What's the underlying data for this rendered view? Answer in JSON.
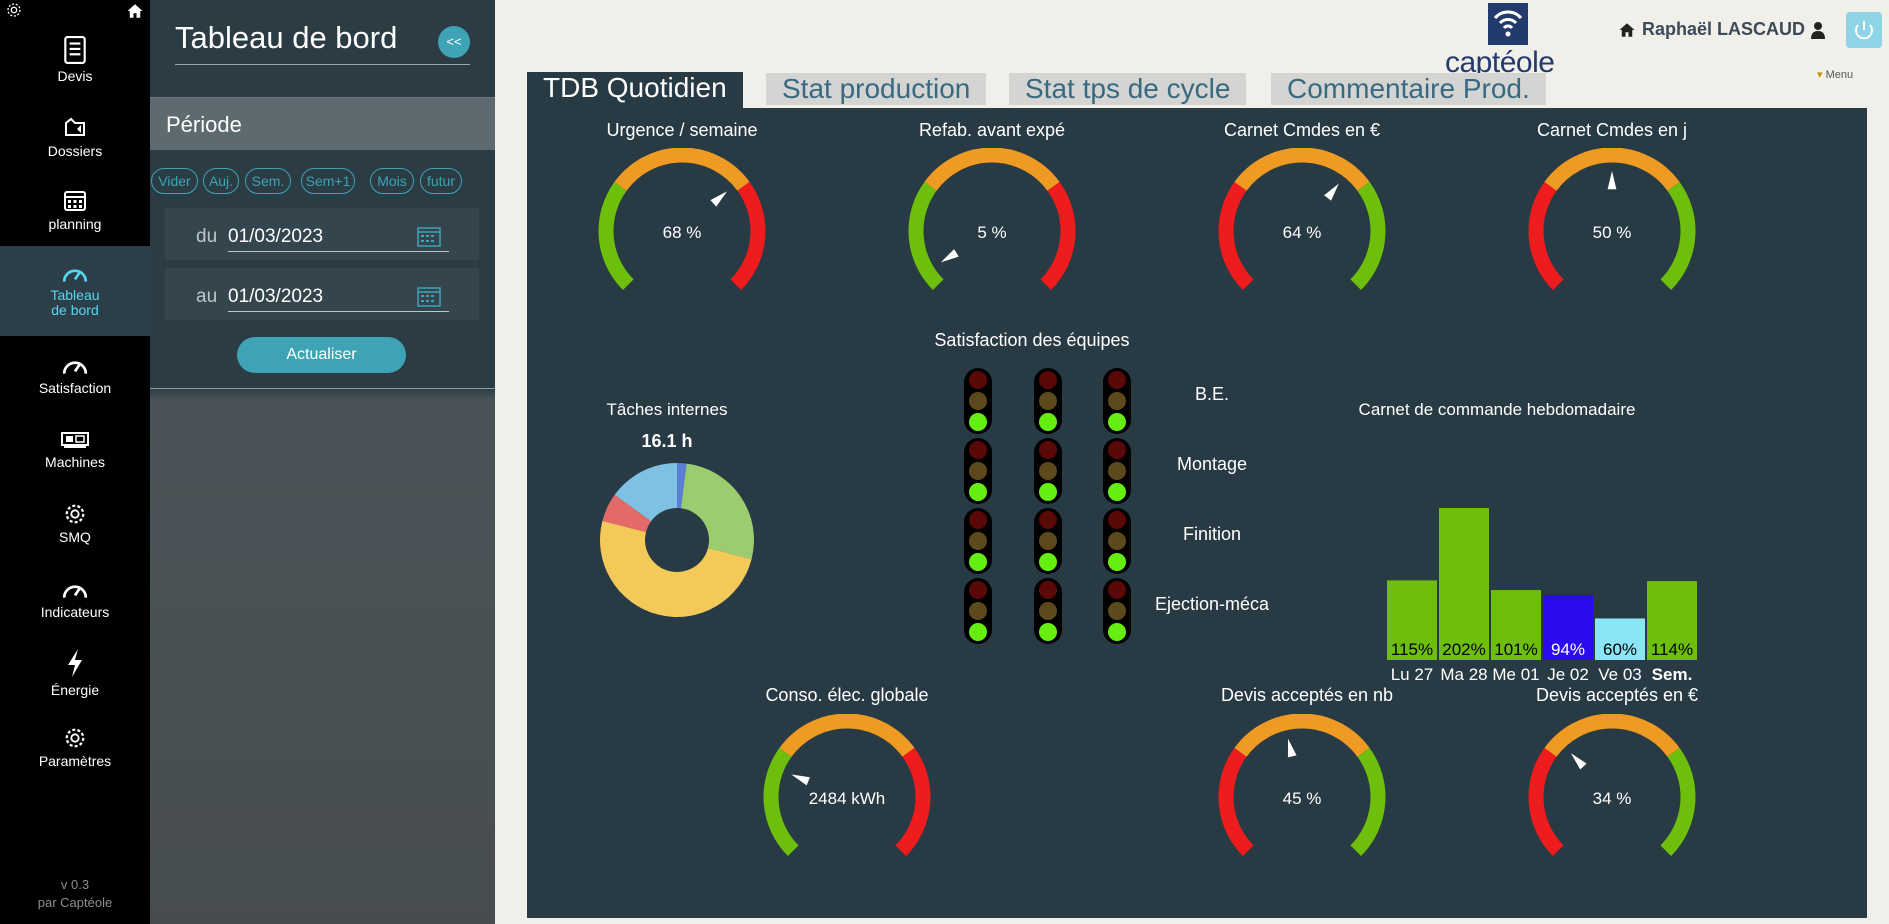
{
  "nav": {
    "items": [
      {
        "label": "Devis",
        "icon": "document-icon"
      },
      {
        "label": "Dossiers",
        "icon": "folder-icon"
      },
      {
        "label": "planning",
        "icon": "calendar-icon"
      },
      {
        "label": "Tableau de bord",
        "icon": "gauge-icon",
        "active": true
      },
      {
        "label": "Satisfaction",
        "icon": "gauge-icon"
      },
      {
        "label": "Machines",
        "icon": "machine-icon"
      },
      {
        "label": "SMQ",
        "icon": "gear-icon"
      },
      {
        "label": "Indicateurs",
        "icon": "gauge-icon"
      },
      {
        "label": "Énergie",
        "icon": "lightning-icon"
      },
      {
        "label": "Paramètres",
        "icon": "gear-icon"
      }
    ],
    "version": "v 0.3",
    "by": "par Captéole"
  },
  "panel": {
    "title": "Tableau de bord",
    "collapse": "<<",
    "periode": "Période",
    "period_buttons": [
      "Vider",
      "Auj.",
      "Sem.",
      "Sem+1",
      "Mois",
      "futur"
    ],
    "from_label": "du",
    "from_value": "01/03/2023",
    "to_label": "au",
    "to_value": "01/03/2023",
    "refresh": "Actualiser"
  },
  "header": {
    "logo_text": "captéole",
    "user": "Raphaël LASCAUD",
    "menu": "Menu"
  },
  "tabs": [
    "TDB Quotidien",
    "Stat production",
    "Stat tps de cycle",
    "Commentaire Prod."
  ],
  "gauges": {
    "urgence": {
      "title": "Urgence / semaine",
      "value_text": "68 %",
      "value": 68,
      "scheme": "green-orange-red"
    },
    "refab": {
      "title": "Refab. avant expé",
      "value_text": "5 %",
      "value": 5,
      "scheme": "green-orange-red"
    },
    "carnet_eur": {
      "title": "Carnet Cmdes en €",
      "value_text": "64 %",
      "value": 64,
      "scheme": "red-orange-green"
    },
    "carnet_j": {
      "title": "Carnet Cmdes en j",
      "value_text": "50 %",
      "value": 50,
      "scheme": "red-orange-green"
    },
    "conso": {
      "title": "Conso. élec. globale",
      "value_text": "2484  kWh",
      "value": 2484,
      "scheme": "green-orange-red"
    },
    "devis_nb": {
      "title": "Devis acceptés en nb",
      "value_text": "45  %",
      "value": 45,
      "scheme": "red-orange-green"
    },
    "devis_eur": {
      "title": "Devis acceptés en €",
      "value_text": "34  %",
      "value": 34,
      "scheme": "red-orange-green"
    }
  },
  "taches": {
    "title": "Tâches internes",
    "total": "16.1 h",
    "colors": [
      "#5c7fd6",
      "#9ccc70",
      "#f3c95a",
      "#e46a6a",
      "#7ec1e2"
    ]
  },
  "satisfaction": {
    "title": "Satisfaction des équipes",
    "teams": [
      "B.E.",
      "Montage",
      "Finition",
      "Ejection-méca"
    ]
  },
  "carnet_hebdo": {
    "title": "Carnet de commande hebdomadaire",
    "days": [
      "Lu 27",
      "Ma 28",
      "Me 01",
      "Je 02",
      "Ve 03",
      "Sem."
    ],
    "percent_labels": [
      "115%",
      "202%",
      "101%",
      "94%",
      "60%",
      "114%"
    ],
    "colors": {
      "green": "#6dbf0b",
      "blue": "#2a0bf0",
      "cyan": "#8ae6f7"
    }
  },
  "chart_data": [
    {
      "type": "bar",
      "title": "Carnet de commande hebdomadaire",
      "categories": [
        "Lu 27",
        "Ma 28",
        "Me 01",
        "Je 02",
        "Ve 03",
        "Sem."
      ],
      "values": [
        115,
        202,
        101,
        94,
        60,
        114
      ]
    },
    {
      "type": "pie",
      "title": "Tâches internes",
      "values": [
        2,
        27,
        50,
        6,
        15
      ]
    }
  ]
}
